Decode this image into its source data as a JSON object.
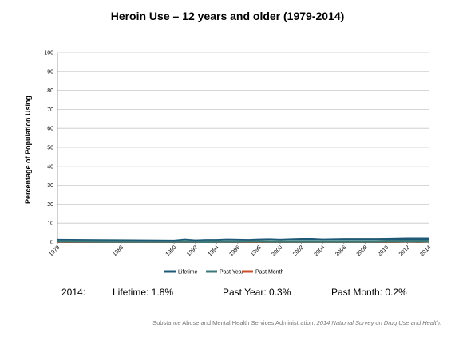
{
  "colors": {
    "lifetime": "#1e5a78",
    "past_year": "#3c7a7a",
    "past_month": "#c8502a",
    "grid": "#c8c8c8"
  },
  "chart_data": {
    "type": "line",
    "title": "Heroin Use – 12 years and older (1979-2014)",
    "xlabel": "",
    "ylabel": "Percentage of Population Using",
    "ylim": [
      0,
      100
    ],
    "yticks": [
      "0",
      "10",
      "20",
      "30",
      "40",
      "50",
      "60",
      "70",
      "80",
      "90",
      "100"
    ],
    "x": [
      "1979",
      "1985",
      "1990",
      "1991",
      "1992",
      "1993",
      "1994",
      "1995",
      "1996",
      "1997",
      "1998",
      "1999",
      "2000",
      "2001",
      "2002",
      "2003",
      "2004",
      "2005",
      "2006",
      "2007",
      "2008",
      "2009",
      "2010",
      "2011",
      "2012",
      "2013",
      "2014"
    ],
    "xticks": [
      "1979",
      "1985",
      "1990",
      "1992",
      "1994",
      "1996",
      "1998",
      "2000",
      "2002",
      "2004",
      "2006",
      "2008",
      "2010",
      "2012",
      "2014"
    ],
    "grid": true,
    "legend": "bottom",
    "series": [
      {
        "name": "Lifetime",
        "values": [
          1.2,
          1.0,
          0.8,
          1.3,
          0.9,
          1.1,
          1.1,
          1.3,
          1.2,
          1.1,
          1.3,
          1.4,
          1.2,
          1.4,
          1.6,
          1.6,
          1.3,
          1.4,
          1.5,
          1.5,
          1.5,
          1.5,
          1.6,
          1.7,
          1.8,
          1.8,
          1.8
        ]
      },
      {
        "name": "Past Year",
        "values": [
          0.3,
          0.2,
          0.2,
          0.2,
          0.2,
          0.1,
          0.2,
          0.2,
          0.2,
          0.3,
          0.3,
          0.2,
          0.2,
          0.2,
          0.2,
          0.2,
          0.2,
          0.2,
          0.2,
          0.2,
          0.2,
          0.2,
          0.3,
          0.3,
          0.3,
          0.3,
          0.3
        ]
      },
      {
        "name": "Past Month",
        "values": [
          0.1,
          0.1,
          0.1,
          0.1,
          0.1,
          0.1,
          0.1,
          0.1,
          0.1,
          0.1,
          0.1,
          0.1,
          0.1,
          0.1,
          0.1,
          0.1,
          0.1,
          0.1,
          0.1,
          0.1,
          0.1,
          0.1,
          0.1,
          0.1,
          0.2,
          0.1,
          0.2
        ]
      }
    ]
  },
  "summary": {
    "year": "2014:",
    "lifetime": "Lifetime: 1.8%",
    "past_year": "Past Year: 0.3%",
    "past_month": "Past Month: 0.2%"
  },
  "source": {
    "agency": "Substance Abuse and Mental Health Services Administration.",
    "publication": "2014 National Survey on Drug Use and Health"
  }
}
